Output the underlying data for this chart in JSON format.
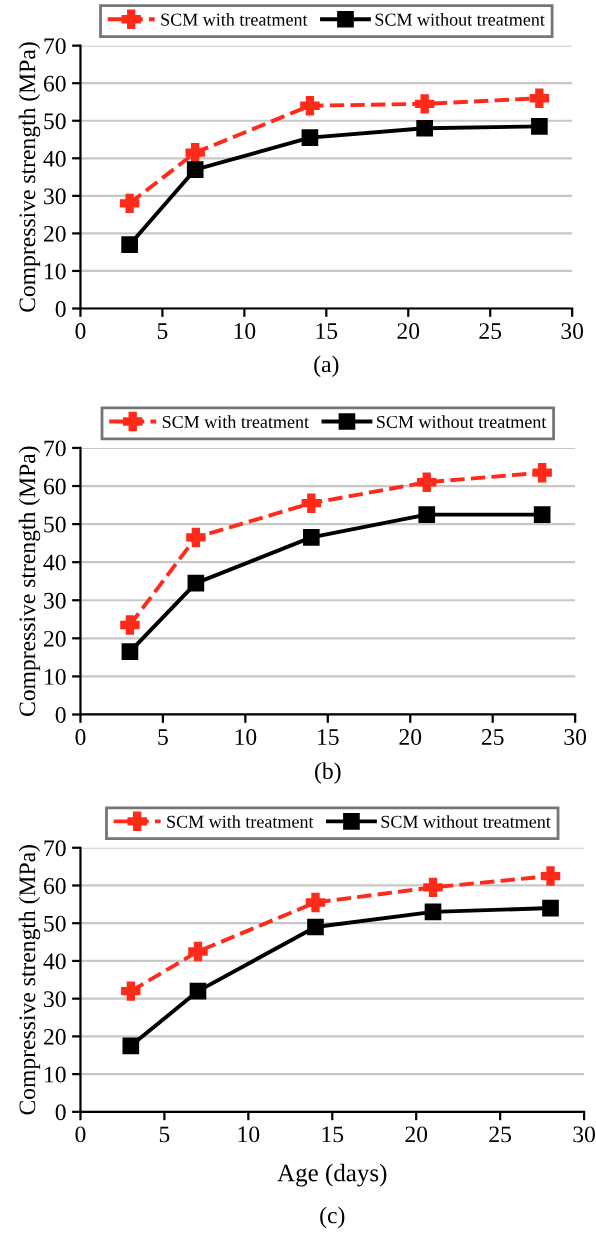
{
  "chart_data": [
    {
      "type": "line",
      "title": "(a)",
      "ylabel": "Compressive strength (MPa)",
      "x": [
        3,
        7,
        14,
        21,
        28
      ],
      "xlim": [
        0,
        30
      ],
      "xticks": [
        0,
        5,
        10,
        15,
        20,
        25,
        30
      ],
      "ylim": [
        0,
        70
      ],
      "yticks": [
        0,
        10,
        20,
        30,
        40,
        50,
        60,
        70
      ],
      "grid": "y",
      "legend": "top",
      "series": [
        {
          "name": "SCM with treatment",
          "color": "#ff2a1a",
          "values": [
            28,
            41.5,
            54,
            54.5,
            56
          ],
          "marker": "cross",
          "line_style": "dashed"
        },
        {
          "name": "SCM without treatment",
          "color": "#000000",
          "values": [
            17,
            37,
            45.5,
            48,
            48.5
          ],
          "marker": "square",
          "line_style": "solid"
        }
      ]
    },
    {
      "type": "line",
      "title": "(b)",
      "ylabel": "Compressive strength (MPa)",
      "x": [
        3,
        7,
        14,
        21,
        28
      ],
      "xlim": [
        0,
        30
      ],
      "xticks": [
        0,
        5,
        10,
        15,
        20,
        25,
        30
      ],
      "ylim": [
        0,
        70
      ],
      "yticks": [
        0,
        10,
        20,
        30,
        40,
        50,
        60,
        70
      ],
      "grid": "y",
      "legend": "top",
      "series": [
        {
          "name": "SCM with treatment",
          "color": "#ff2a1a",
          "values": [
            23.5,
            46.5,
            55.5,
            61,
            63.5
          ],
          "marker": "cross",
          "line_style": "dashed"
        },
        {
          "name": "SCM without treatment",
          "color": "#000000",
          "values": [
            16.5,
            34.5,
            46.5,
            52.5,
            52.5
          ],
          "marker": "square",
          "line_style": "solid"
        }
      ]
    },
    {
      "type": "line",
      "title": "(c)",
      "xlabel": "Age (days)",
      "ylabel": "Compressive strength (MPa)",
      "x": [
        3,
        7,
        14,
        21,
        28
      ],
      "xlim": [
        0,
        30
      ],
      "xticks": [
        0,
        5,
        10,
        15,
        20,
        25,
        30
      ],
      "ylim": [
        0,
        70
      ],
      "yticks": [
        0,
        10,
        20,
        30,
        40,
        50,
        60,
        70
      ],
      "grid": "y",
      "legend": "top",
      "series": [
        {
          "name": "SCM with treatment",
          "color": "#ff2a1a",
          "values": [
            32,
            42.5,
            55.5,
            59.5,
            62.5
          ],
          "marker": "cross",
          "line_style": "dashed"
        },
        {
          "name": "SCM without treatment",
          "color": "#000000",
          "values": [
            17.5,
            32,
            49,
            53,
            54
          ],
          "marker": "square",
          "line_style": "solid"
        }
      ]
    }
  ]
}
